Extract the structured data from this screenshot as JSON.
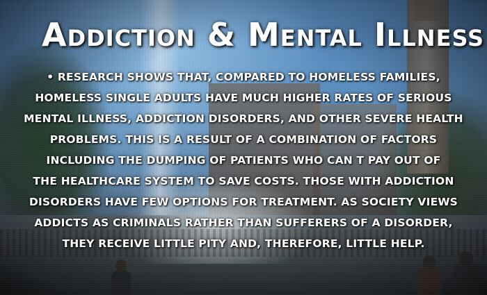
{
  "title": "Addiction & Mental Illness",
  "body": {
    "lines": [
      "•      Research shows that, compared to homeless families,",
      "homeless single adults have much higher rates of serious",
      "mental illness, addiction disorders, and other severe health",
      "problems. This is a result of a combination of factors",
      "including the  dumping  of patients who can t pay out of",
      "the healthcare system to save costs. Those with addiction",
      "disorders have few options for treatment. As society views",
      "addicts as criminals rather than sufferers of a disorder,",
      "they receive little pity and, therefore, little help."
    ]
  },
  "colors": {
    "text": "#ffffff",
    "shadow": "#000000"
  }
}
